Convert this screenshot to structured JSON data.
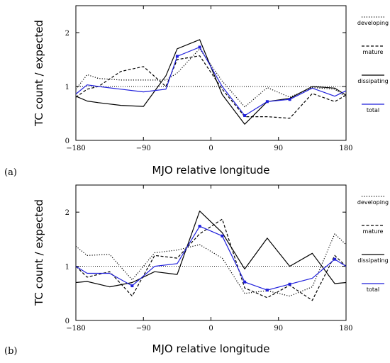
{
  "chart_data": [
    {
      "type": "line",
      "panel_label": "(a)",
      "xlabel": "MJO relative longitude",
      "ylabel": "TC count / expected",
      "xlim": [
        -180,
        180
      ],
      "ylim": [
        0,
        2.5
      ],
      "xticks": [
        -180,
        -90,
        0,
        90,
        180
      ],
      "xtick_labels": [
        "−180",
        "−90",
        "0",
        "90",
        "180"
      ],
      "yticks": [
        0,
        1,
        2
      ],
      "ytick_labels": [
        "0",
        "1",
        "2"
      ],
      "reference_line": 1,
      "legend_position": "right",
      "series": [
        {
          "name": "developing",
          "style": "dotted",
          "color": "#000000",
          "x": [
            -180,
            -165,
            -150,
            -120,
            -90,
            -60,
            -45,
            -15,
            15,
            45,
            75,
            105,
            135,
            165,
            180
          ],
          "y": [
            0.95,
            1.22,
            1.15,
            1.12,
            1.12,
            1.12,
            1.25,
            1.7,
            1.1,
            0.62,
            0.98,
            0.8,
            0.98,
            0.95,
            0.8
          ]
        },
        {
          "name": "mature",
          "style": "dashed",
          "color": "#000000",
          "x": [
            -180,
            -165,
            -150,
            -120,
            -90,
            -60,
            -45,
            -15,
            15,
            45,
            75,
            105,
            135,
            165,
            180
          ],
          "y": [
            0.8,
            0.95,
            1.0,
            1.28,
            1.37,
            1.0,
            1.5,
            1.57,
            0.95,
            0.44,
            0.44,
            0.41,
            0.87,
            0.72,
            0.84
          ]
        },
        {
          "name": "dissipating",
          "style": "solid",
          "color": "#000000",
          "x": [
            -180,
            -165,
            -150,
            -120,
            -90,
            -60,
            -45,
            -15,
            15,
            45,
            75,
            105,
            135,
            165,
            180
          ],
          "y": [
            0.82,
            0.73,
            0.7,
            0.65,
            0.63,
            1.2,
            1.7,
            1.87,
            0.85,
            0.3,
            0.72,
            0.78,
            1.0,
            0.97,
            0.84
          ]
        },
        {
          "name": "total",
          "style": "solid-markers",
          "color": "#1f1fdc",
          "x": [
            -180,
            -165,
            -150,
            -120,
            -90,
            -60,
            -45,
            -15,
            15,
            45,
            75,
            105,
            135,
            165,
            180
          ],
          "y": [
            0.86,
            1.03,
            1.0,
            0.95,
            0.9,
            0.95,
            1.56,
            1.73,
            1.0,
            0.46,
            0.72,
            0.76,
            0.97,
            0.82,
            0.92
          ],
          "marker_x": [
            -45,
            -15,
            45,
            75,
            105
          ],
          "marker_y": [
            1.56,
            1.73,
            0.46,
            0.72,
            0.76
          ]
        }
      ]
    },
    {
      "type": "line",
      "panel_label": "(b)",
      "xlabel": "MJO relative longitude",
      "ylabel": "TC count / expected",
      "xlim": [
        -180,
        180
      ],
      "ylim": [
        0,
        2.5
      ],
      "xticks": [
        -180,
        -90,
        0,
        90,
        180
      ],
      "xtick_labels": [
        "−180",
        "−90",
        "0",
        "90",
        "180"
      ],
      "yticks": [
        0,
        1,
        2
      ],
      "ytick_labels": [
        "0",
        "1",
        "2"
      ],
      "reference_line": 1,
      "legend_position": "right",
      "series": [
        {
          "name": "developing",
          "style": "dotted",
          "color": "#000000",
          "x": [
            -180,
            -165,
            -135,
            -105,
            -75,
            -45,
            -15,
            15,
            45,
            75,
            105,
            135,
            165,
            180
          ],
          "y": [
            1.37,
            1.2,
            1.22,
            0.75,
            1.25,
            1.3,
            1.4,
            1.15,
            0.5,
            0.55,
            0.45,
            0.62,
            1.6,
            1.4
          ]
        },
        {
          "name": "mature",
          "style": "dashed",
          "color": "#000000",
          "x": [
            -180,
            -165,
            -135,
            -105,
            -75,
            -45,
            -15,
            15,
            45,
            75,
            105,
            135,
            165,
            180
          ],
          "y": [
            1.0,
            0.8,
            0.9,
            0.45,
            1.2,
            1.15,
            1.6,
            1.87,
            0.6,
            0.42,
            0.65,
            0.37,
            1.2,
            1.0
          ]
        },
        {
          "name": "dissipating",
          "style": "solid",
          "color": "#000000",
          "x": [
            -180,
            -165,
            -135,
            -105,
            -75,
            -45,
            -15,
            15,
            45,
            75,
            105,
            135,
            165,
            180
          ],
          "y": [
            0.7,
            0.72,
            0.62,
            0.7,
            0.9,
            0.85,
            2.02,
            1.62,
            0.95,
            1.52,
            1.0,
            1.24,
            0.68,
            0.7
          ]
        },
        {
          "name": "total",
          "style": "solid-markers",
          "color": "#1f1fdc",
          "x": [
            -180,
            -165,
            -135,
            -105,
            -75,
            -45,
            -15,
            15,
            45,
            75,
            105,
            135,
            165,
            180
          ],
          "y": [
            1.0,
            0.87,
            0.87,
            0.64,
            1.0,
            1.05,
            1.74,
            1.56,
            0.71,
            0.56,
            0.67,
            0.78,
            1.13,
            1.0
          ],
          "marker_x": [
            -105,
            -15,
            15,
            45,
            75,
            105,
            165
          ],
          "marker_y": [
            0.64,
            1.74,
            1.56,
            0.71,
            0.56,
            0.67,
            1.13
          ]
        }
      ]
    }
  ]
}
